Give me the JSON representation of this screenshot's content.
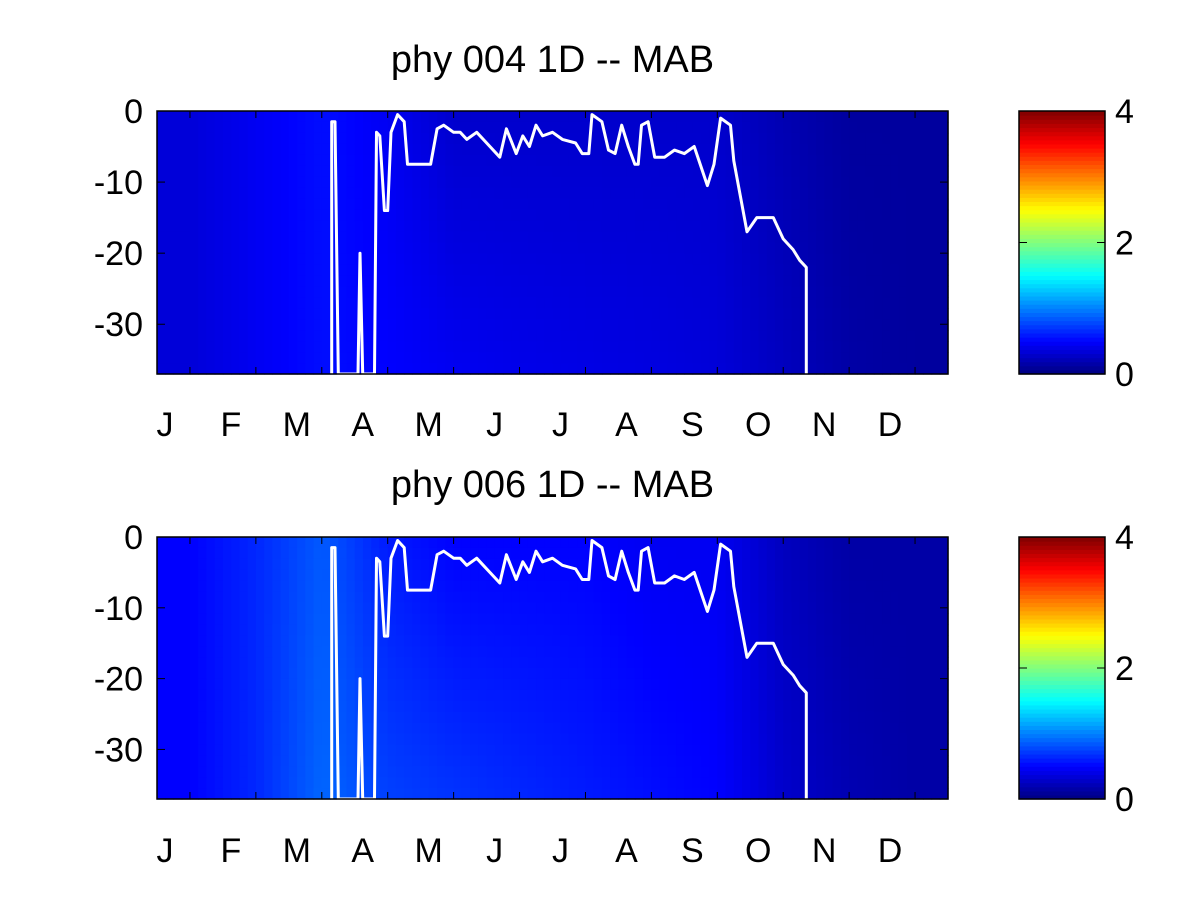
{
  "chart_data": [
    {
      "type": "heatmap",
      "title": "phy  004 1D   -- MAB",
      "xlabel": "",
      "ylabel": "",
      "x_tick_labels": [
        "J",
        "F",
        "M",
        "A",
        "M",
        "J",
        "J",
        "A",
        "S",
        "O",
        "N",
        "D"
      ],
      "y_ticks": [
        0,
        -10,
        -20,
        -30
      ],
      "y_tick_labels": [
        "0",
        "-10",
        "-20",
        "-30"
      ],
      "ylim": [
        -37,
        0
      ],
      "xlim_months": [
        0,
        12
      ],
      "colormap": "jet",
      "clim": [
        0,
        4
      ],
      "colorbar_ticks": [
        0,
        2,
        4
      ],
      "colorbar_tick_labels": [
        "0",
        "2",
        "4"
      ],
      "field_description_estimates": {
        "surface_value_by_month": [
          0.35,
          0.45,
          0.55,
          0.45,
          0.3,
          0.3,
          0.3,
          0.3,
          0.3,
          0.2,
          0.12,
          0.12
        ],
        "deep_value_by_month": [
          0.35,
          0.45,
          0.55,
          0.5,
          0.45,
          0.42,
          0.4,
          0.38,
          0.35,
          0.25,
          0.15,
          0.12
        ]
      },
      "overlay_line": {
        "name": "",
        "color": "#ffffff",
        "points": [
          [
            2.65,
            -37
          ],
          [
            2.65,
            -1.5
          ],
          [
            2.7,
            -1.5
          ],
          [
            2.75,
            -37
          ],
          [
            3.05,
            -37
          ],
          [
            3.08,
            -20
          ],
          [
            3.12,
            -37
          ],
          [
            3.3,
            -37
          ],
          [
            3.33,
            -3
          ],
          [
            3.38,
            -3.5
          ],
          [
            3.45,
            -14
          ],
          [
            3.5,
            -14
          ],
          [
            3.55,
            -3
          ],
          [
            3.65,
            -0.5
          ],
          [
            3.75,
            -1.5
          ],
          [
            3.8,
            -7.5
          ],
          [
            4.15,
            -7.5
          ],
          [
            4.25,
            -2.5
          ],
          [
            4.35,
            -2
          ],
          [
            4.5,
            -3
          ],
          [
            4.6,
            -3
          ],
          [
            4.7,
            -4
          ],
          [
            4.85,
            -3
          ],
          [
            4.95,
            -4
          ],
          [
            5.05,
            -5
          ],
          [
            5.2,
            -6.5
          ],
          [
            5.3,
            -2.5
          ],
          [
            5.45,
            -6
          ],
          [
            5.55,
            -3.5
          ],
          [
            5.65,
            -5
          ],
          [
            5.75,
            -2
          ],
          [
            5.85,
            -3.5
          ],
          [
            6.0,
            -3
          ],
          [
            6.15,
            -4
          ],
          [
            6.35,
            -4.5
          ],
          [
            6.45,
            -6
          ],
          [
            6.55,
            -6
          ],
          [
            6.6,
            -0.5
          ],
          [
            6.75,
            -1.5
          ],
          [
            6.85,
            -5.5
          ],
          [
            6.95,
            -6
          ],
          [
            7.05,
            -2
          ],
          [
            7.15,
            -5
          ],
          [
            7.25,
            -7.5
          ],
          [
            7.3,
            -7.5
          ],
          [
            7.35,
            -2
          ],
          [
            7.45,
            -1.5
          ],
          [
            7.55,
            -6.5
          ],
          [
            7.7,
            -6.5
          ],
          [
            7.85,
            -5.5
          ],
          [
            8.0,
            -6
          ],
          [
            8.15,
            -5
          ],
          [
            8.35,
            -10.5
          ],
          [
            8.45,
            -7.5
          ],
          [
            8.55,
            -1
          ],
          [
            8.7,
            -2
          ],
          [
            8.75,
            -7
          ],
          [
            8.85,
            -12
          ],
          [
            8.95,
            -17
          ],
          [
            9.1,
            -15
          ],
          [
            9.35,
            -15
          ],
          [
            9.5,
            -18
          ],
          [
            9.65,
            -19.5
          ],
          [
            9.75,
            -21
          ],
          [
            9.85,
            -22
          ],
          [
            9.85,
            -37
          ]
        ]
      }
    },
    {
      "type": "heatmap",
      "title": "phy  006 1D   -- MAB",
      "xlabel": "",
      "ylabel": "",
      "x_tick_labels": [
        "J",
        "F",
        "M",
        "A",
        "M",
        "J",
        "J",
        "A",
        "S",
        "O",
        "N",
        "D"
      ],
      "y_ticks": [
        0,
        -10,
        -20,
        -30
      ],
      "y_tick_labels": [
        "0",
        "-10",
        "-20",
        "-30"
      ],
      "ylim": [
        -37,
        0
      ],
      "xlim_months": [
        0,
        12
      ],
      "colormap": "jet",
      "clim": [
        0,
        4
      ],
      "colorbar_ticks": [
        0,
        2,
        4
      ],
      "colorbar_tick_labels": [
        "0",
        "2",
        "4"
      ],
      "field_description_estimates": {
        "surface_value_by_month": [
          0.5,
          0.65,
          0.85,
          0.6,
          0.5,
          0.5,
          0.5,
          0.45,
          0.45,
          0.25,
          0.15,
          0.15
        ],
        "deep_value_by_month": [
          0.5,
          0.65,
          0.9,
          0.75,
          0.7,
          0.65,
          0.6,
          0.55,
          0.5,
          0.3,
          0.2,
          0.15
        ]
      },
      "overlay_line": {
        "name": "",
        "color": "#ffffff",
        "points": [
          [
            2.65,
            -37
          ],
          [
            2.65,
            -1.5
          ],
          [
            2.7,
            -1.5
          ],
          [
            2.75,
            -37
          ],
          [
            3.05,
            -37
          ],
          [
            3.08,
            -20
          ],
          [
            3.12,
            -37
          ],
          [
            3.3,
            -37
          ],
          [
            3.33,
            -3
          ],
          [
            3.38,
            -3.5
          ],
          [
            3.45,
            -14
          ],
          [
            3.5,
            -14
          ],
          [
            3.55,
            -3
          ],
          [
            3.65,
            -0.5
          ],
          [
            3.75,
            -1.5
          ],
          [
            3.8,
            -7.5
          ],
          [
            4.15,
            -7.5
          ],
          [
            4.25,
            -2.5
          ],
          [
            4.35,
            -2
          ],
          [
            4.5,
            -3
          ],
          [
            4.6,
            -3
          ],
          [
            4.7,
            -4
          ],
          [
            4.85,
            -3
          ],
          [
            4.95,
            -4
          ],
          [
            5.05,
            -5
          ],
          [
            5.2,
            -6.5
          ],
          [
            5.3,
            -2.5
          ],
          [
            5.45,
            -6
          ],
          [
            5.55,
            -3.5
          ],
          [
            5.65,
            -5
          ],
          [
            5.75,
            -2
          ],
          [
            5.85,
            -3.5
          ],
          [
            6.0,
            -3
          ],
          [
            6.15,
            -4
          ],
          [
            6.35,
            -4.5
          ],
          [
            6.45,
            -6
          ],
          [
            6.55,
            -6
          ],
          [
            6.6,
            -0.5
          ],
          [
            6.75,
            -1.5
          ],
          [
            6.85,
            -5.5
          ],
          [
            6.95,
            -6
          ],
          [
            7.05,
            -2
          ],
          [
            7.15,
            -5
          ],
          [
            7.25,
            -7.5
          ],
          [
            7.3,
            -7.5
          ],
          [
            7.35,
            -2
          ],
          [
            7.45,
            -1.5
          ],
          [
            7.55,
            -6.5
          ],
          [
            7.7,
            -6.5
          ],
          [
            7.85,
            -5.5
          ],
          [
            8.0,
            -6
          ],
          [
            8.15,
            -5
          ],
          [
            8.35,
            -10.5
          ],
          [
            8.45,
            -7.5
          ],
          [
            8.55,
            -1
          ],
          [
            8.7,
            -2
          ],
          [
            8.75,
            -7
          ],
          [
            8.85,
            -12
          ],
          [
            8.95,
            -17
          ],
          [
            9.1,
            -15
          ],
          [
            9.35,
            -15
          ],
          [
            9.5,
            -18
          ],
          [
            9.65,
            -19.5
          ],
          [
            9.75,
            -21
          ],
          [
            9.85,
            -22
          ],
          [
            9.85,
            -37
          ]
        ]
      }
    }
  ]
}
